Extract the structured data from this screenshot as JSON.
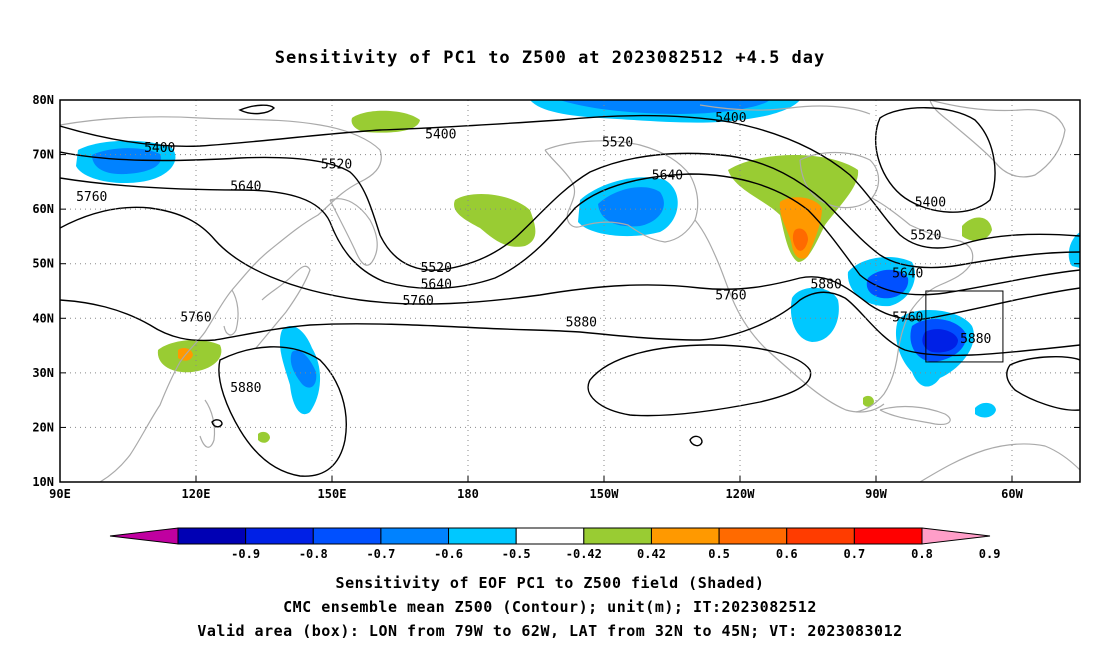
{
  "title": "Sensitivity of PC1 to Z500 at 2023082512 +4.5 day",
  "lat_ticks": [
    "80N",
    "70N",
    "60N",
    "50N",
    "40N",
    "30N",
    "20N",
    "10N"
  ],
  "lon_ticks": [
    "90E",
    "120E",
    "150E",
    "180",
    "150W",
    "120W",
    "90W",
    "60W"
  ],
  "contour_labels": [
    {
      "text": "5400",
      "lon": 112,
      "lat": 71
    },
    {
      "text": "5400",
      "lon": 174,
      "lat": 73.5
    },
    {
      "text": "5400",
      "lon": -122,
      "lat": 76.5
    },
    {
      "text": "5400",
      "lon": -78,
      "lat": 61
    },
    {
      "text": "5520",
      "lon": 151,
      "lat": 68
    },
    {
      "text": "5520",
      "lon": -147,
      "lat": 72
    },
    {
      "text": "5520",
      "lon": 173,
      "lat": 49
    },
    {
      "text": "5520",
      "lon": -79,
      "lat": 55
    },
    {
      "text": "5640",
      "lon": 131,
      "lat": 64
    },
    {
      "text": "5640",
      "lon": -136,
      "lat": 66
    },
    {
      "text": "5640",
      "lon": 173,
      "lat": 46
    },
    {
      "text": "5640",
      "lon": -83,
      "lat": 48
    },
    {
      "text": "5760",
      "lon": 97,
      "lat": 62
    },
    {
      "text": "5760",
      "lon": 120,
      "lat": 40
    },
    {
      "text": "5760",
      "lon": 169,
      "lat": 43
    },
    {
      "text": "5760",
      "lon": -122,
      "lat": 44
    },
    {
      "text": "5760",
      "lon": -83,
      "lat": 40
    },
    {
      "text": "5880",
      "lon": 131,
      "lat": 27
    },
    {
      "text": "5880",
      "lon": -155,
      "lat": 39
    },
    {
      "text": "5880",
      "lon": -101,
      "lat": 46
    },
    {
      "text": "5880",
      "lon": -68,
      "lat": 36
    }
  ],
  "colorbar": {
    "labels": [
      "-0.9",
      "-0.8",
      "-0.7",
      "-0.6",
      "-0.5",
      "-0.42",
      "0.42",
      "0.5",
      "0.6",
      "0.7",
      "0.8",
      "0.9"
    ],
    "colors": [
      "#c000a0",
      "#0000b4",
      "#0020e6",
      "#0050ff",
      "#0082ff",
      "#00c8ff",
      "#ffffff",
      "#99cc33",
      "#ff9900",
      "#ff6a00",
      "#ff3c00",
      "#ff0000",
      "#ff9ec8"
    ]
  },
  "caption": {
    "line1": "Sensitivity of EOF PC1 to Z500 field (Shaded)",
    "line2": "CMC ensemble mean Z500 (Contour); unit(m); IT:2023082512",
    "line3": "Valid area (box): LON from 79W to 62W, LAT from 32N to 45N; VT: 2023083012"
  },
  "valid_box": {
    "lon_min": -79,
    "lon_max": -62,
    "lat_min": 32,
    "lat_max": 45
  },
  "extent": {
    "lon_min": 90,
    "lon_max": 315,
    "lat_min": 10,
    "lat_max": 80
  }
}
